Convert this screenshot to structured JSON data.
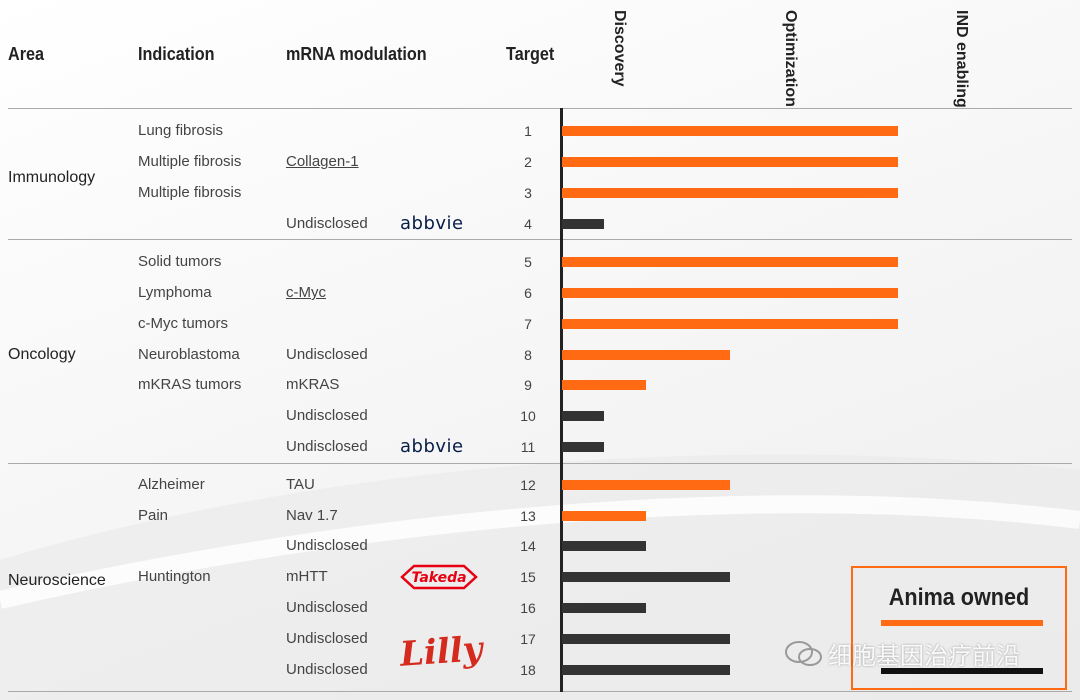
{
  "headers": {
    "area": "Area",
    "indication": "Indication",
    "modulation": "mRNA modulation",
    "target": "Target",
    "stage1": "Discovery",
    "stage2": "Optimization",
    "stage3": "IND enabling"
  },
  "areas": [
    "Immunology",
    "Oncology",
    "Neuroscience"
  ],
  "rows": [
    {
      "indication": "Lung fibrosis",
      "modulation": "",
      "target": "1"
    },
    {
      "indication": "Multiple fibrosis",
      "modulation": "Collagen-1",
      "target": "2"
    },
    {
      "indication": "Multiple fibrosis",
      "modulation": "",
      "target": "3"
    },
    {
      "indication": "",
      "modulation": "Undisclosed",
      "target": "4"
    },
    {
      "indication": "Solid tumors",
      "modulation": "",
      "target": "5"
    },
    {
      "indication": "Lymphoma",
      "modulation": "c-Myc",
      "target": "6"
    },
    {
      "indication": "c-Myc tumors",
      "modulation": "",
      "target": "7"
    },
    {
      "indication": "Neuroblastoma",
      "modulation": "Undisclosed",
      "target": "8"
    },
    {
      "indication": "mKRAS tumors",
      "modulation": "mKRAS",
      "target": "9"
    },
    {
      "indication": "",
      "modulation": "Undisclosed",
      "target": "10"
    },
    {
      "indication": "",
      "modulation": "Undisclosed",
      "target": "11"
    },
    {
      "indication": "Alzheimer",
      "modulation": "TAU",
      "target": "12"
    },
    {
      "indication": "Pain",
      "modulation": "Nav 1.7",
      "target": "13"
    },
    {
      "indication": "",
      "modulation": "Undisclosed",
      "target": "14"
    },
    {
      "indication": "Huntington",
      "modulation": "mHTT",
      "target": "15"
    },
    {
      "indication": "",
      "modulation": "Undisclosed",
      "target": "16"
    },
    {
      "indication": "",
      "modulation": "Undisclosed",
      "target": "17"
    },
    {
      "indication": "",
      "modulation": "Undisclosed",
      "target": "18"
    }
  ],
  "partners": {
    "abbvie_1": "abbvie",
    "abbvie_2": "abbvie",
    "takeda": "Takeda",
    "lilly": "Lilly"
  },
  "legend": {
    "label": "Anima owned"
  },
  "watermark": "细胞基因治疗前沿",
  "colors": {
    "owned": "#ff6a13",
    "partnered": "#333333"
  },
  "chart_data": {
    "type": "bar",
    "orientation": "horizontal",
    "stages": [
      "Discovery",
      "Optimization",
      "IND enabling"
    ],
    "categories": [
      "1",
      "2",
      "3",
      "4",
      "5",
      "6",
      "7",
      "8",
      "9",
      "10",
      "11",
      "12",
      "13",
      "14",
      "15",
      "16",
      "17",
      "18"
    ],
    "values": [
      2.0,
      2.0,
      2.0,
      0.25,
      2.0,
      2.0,
      2.0,
      1.0,
      0.5,
      0.25,
      0.25,
      1.0,
      0.5,
      0.5,
      1.0,
      0.5,
      1.0,
      1.0
    ],
    "owned": [
      true,
      true,
      true,
      false,
      true,
      true,
      true,
      true,
      true,
      false,
      false,
      true,
      true,
      false,
      false,
      false,
      false,
      false
    ],
    "xlim": [
      0,
      2.4
    ]
  }
}
